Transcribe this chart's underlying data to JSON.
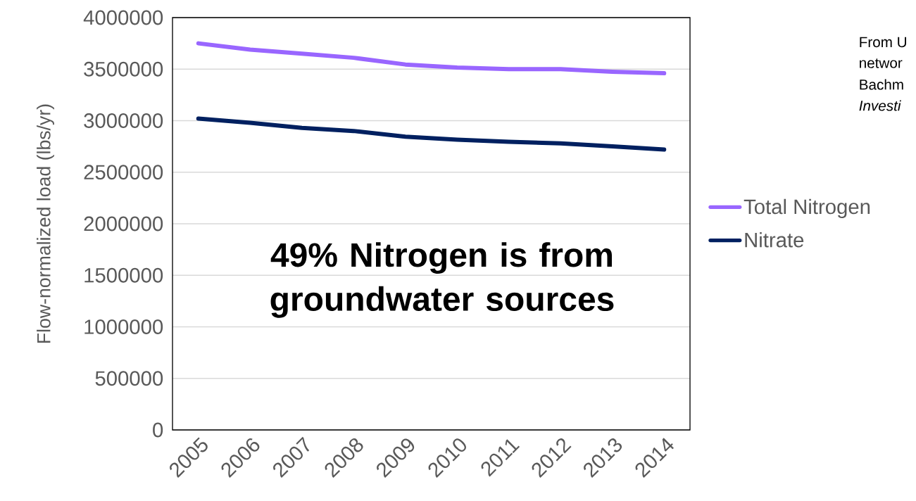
{
  "chart_data": {
    "type": "line",
    "ylabel": "Flow-normalized load (lbs/yr)",
    "categories": [
      "2005",
      "2006",
      "2007",
      "2008",
      "2009",
      "2010",
      "2011",
      "2012",
      "2013",
      "2014"
    ],
    "series": [
      {
        "name": "Total Nitrogen",
        "color": "#9966ff",
        "values": [
          3750000,
          3690000,
          3650000,
          3610000,
          3545000,
          3515000,
          3500000,
          3500000,
          3475000,
          3460000
        ]
      },
      {
        "name": "Nitrate",
        "color": "#002060",
        "values": [
          3020000,
          2980000,
          2930000,
          2900000,
          2845000,
          2815000,
          2795000,
          2780000,
          2750000,
          2720000
        ]
      }
    ],
    "ylim": [
      0,
      4000000
    ],
    "yticks": [
      0,
      500000,
      1000000,
      1500000,
      2000000,
      2500000,
      3000000,
      3500000,
      4000000
    ],
    "grid": "y",
    "legend": "right",
    "line_style": "solid",
    "marker": "none",
    "annotations": [
      "49% Nitrogen is from groundwater sources",
      "From U",
      "networ",
      "Bachm",
      "*Investi*"
    ]
  }
}
